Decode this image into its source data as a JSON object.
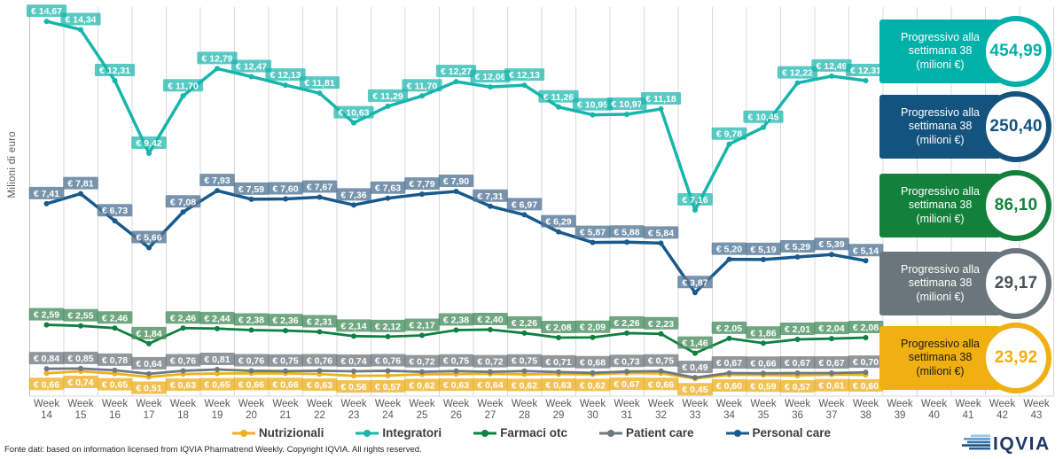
{
  "chart_data": {
    "type": "line",
    "title": "",
    "ylabel": "Milioni di euro",
    "x_prefix": "Week",
    "weeks": [
      14,
      15,
      16,
      17,
      18,
      19,
      20,
      21,
      22,
      23,
      24,
      25,
      26,
      27,
      28,
      29,
      30,
      31,
      32,
      33,
      34,
      35,
      36,
      37,
      38,
      39,
      40,
      41,
      42,
      43
    ],
    "currency_prefix": "€",
    "ylim": [
      0,
      15.5
    ],
    "grid": "vertical",
    "legend_position": "bottom",
    "series": [
      {
        "name": "Nutrizionali",
        "color": "#edb01e",
        "label_bg": "rgba(236,177,35,0.78)",
        "line_width": 2.8,
        "label_side": "below",
        "values": [
          0.66,
          0.74,
          0.65,
          0.51,
          0.63,
          0.65,
          0.66,
          0.66,
          0.63,
          0.56,
          0.57,
          0.62,
          0.63,
          0.64,
          0.62,
          0.63,
          0.62,
          0.67,
          0.66,
          0.45,
          0.6,
          0.59,
          0.57,
          0.61,
          0.6
        ]
      },
      {
        "name": "Integratori",
        "color": "#17b5ac",
        "label_bg": "rgba(23,181,172,0.72)",
        "line_width": 3.5,
        "label_side": "above",
        "values": [
          14.67,
          14.34,
          12.31,
          9.42,
          11.7,
          12.79,
          12.47,
          12.13,
          11.81,
          10.63,
          11.29,
          11.7,
          12.27,
          12.06,
          12.13,
          11.26,
          10.95,
          10.97,
          11.18,
          7.16,
          9.78,
          10.45,
          12.22,
          12.49,
          12.31
        ]
      },
      {
        "name": "Farmaci otc",
        "color": "#0e8040",
        "label_bg": "rgba(72,142,95,0.78)",
        "line_width": 2.8,
        "label_side": "above",
        "values": [
          2.59,
          2.55,
          2.46,
          1.84,
          2.46,
          2.44,
          2.38,
          2.36,
          2.31,
          2.14,
          2.12,
          2.17,
          2.38,
          2.4,
          2.26,
          2.08,
          2.09,
          2.26,
          2.23,
          1.46,
          2.05,
          1.86,
          2.01,
          2.04,
          2.08
        ]
      },
      {
        "name": "Patient care",
        "color": "#6d797f",
        "label_bg": "rgba(110,120,126,0.76)",
        "line_width": 2.8,
        "label_side": "above",
        "values": [
          0.84,
          0.85,
          0.78,
          0.64,
          0.76,
          0.81,
          0.76,
          0.75,
          0.76,
          0.74,
          0.76,
          0.72,
          0.75,
          0.72,
          0.75,
          0.71,
          0.68,
          0.73,
          0.75,
          0.49,
          0.67,
          0.66,
          0.67,
          0.67,
          0.7
        ]
      },
      {
        "name": "Personal care",
        "color": "#185a8b",
        "label_bg": "rgba(82,118,150,0.78)",
        "line_width": 3.5,
        "label_side": "above",
        "values": [
          7.41,
          7.81,
          6.73,
          5.66,
          7.08,
          7.93,
          7.59,
          7.6,
          7.67,
          7.36,
          7.63,
          7.79,
          7.9,
          7.31,
          6.97,
          6.29,
          5.87,
          5.88,
          5.84,
          3.87,
          5.2,
          5.19,
          5.29,
          5.39,
          5.14
        ]
      }
    ]
  },
  "progress_badges": [
    {
      "label": "Progressivo alla settimana 38 (milioni €)",
      "value": "454,99",
      "color": "#00b1a9",
      "text_color": "#ffffff",
      "value_color": "#00b1a9"
    },
    {
      "label": "Progressivo alla settimana 38 (milioni €)",
      "value": "250,40",
      "color": "#15537f",
      "text_color": "#ffffff",
      "value_color": "#15537f"
    },
    {
      "label": "Progressivo alla settimana 38 (milioni €)",
      "value": "86,10",
      "color": "#13813c",
      "text_color": "#ffffff",
      "value_color": "#13813c"
    },
    {
      "label": "Progressivo alla settimana 38 (milioni €)",
      "value": "29,17",
      "color": "#6b767c",
      "text_color": "#ffffff",
      "value_color": "#4a5257"
    },
    {
      "label": "Progressivo alla settimana 38 (milioni €)",
      "value": "23,92",
      "color": "#f0b011",
      "text_color": "#1a1a1a",
      "value_color": "#f0b011"
    }
  ],
  "footer": "Fonte dati: based on information licensed from IQVIA Pharmatrend Weekly. Copyright IQVIA. All rights reserved.",
  "logo_text": "IQVIA"
}
